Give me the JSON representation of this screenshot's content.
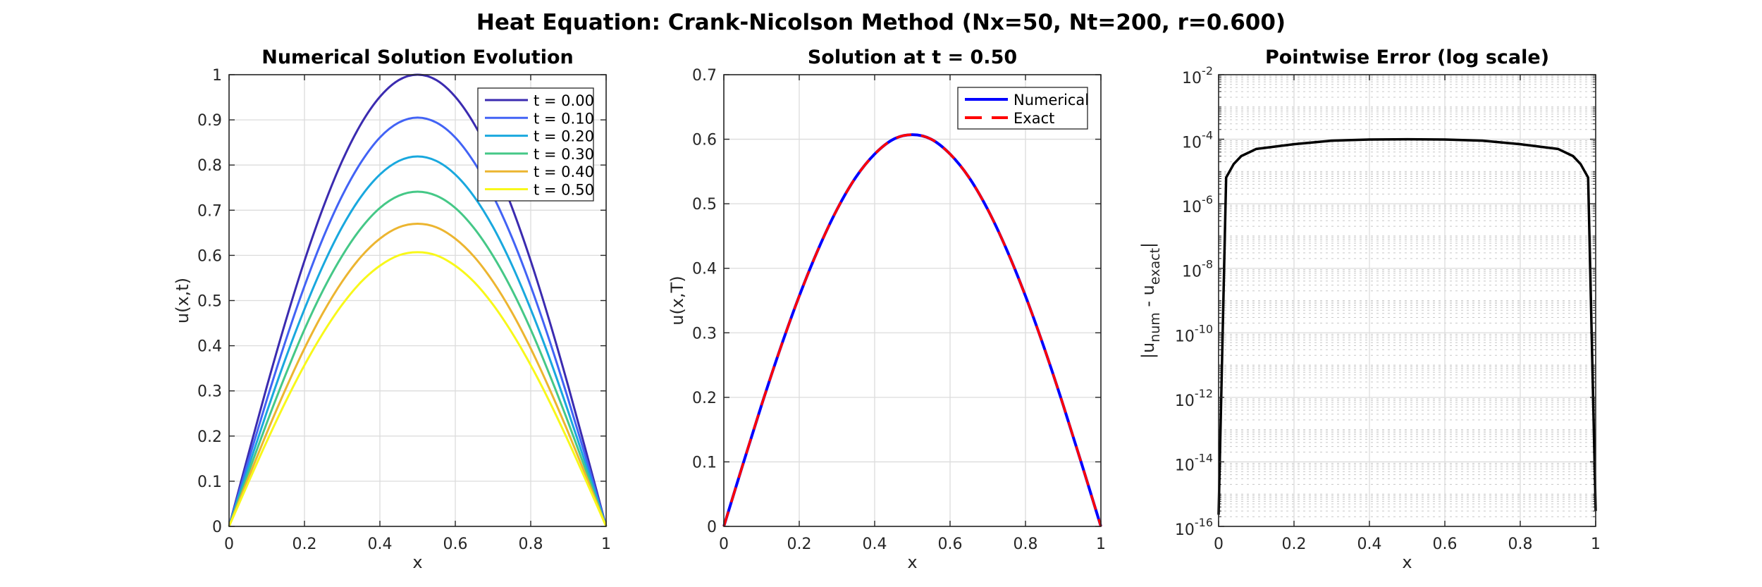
{
  "figure": {
    "suptitle": "Heat Equation: Crank-Nicolson Method (Nx=50, Nt=200, r=0.600)"
  },
  "chart_data": [
    {
      "type": "line",
      "title": "Numerical Solution Evolution",
      "xlabel": "x",
      "ylabel": "u(x,t)",
      "xlim": [
        0,
        1
      ],
      "ylim": [
        0,
        1
      ],
      "yscale": "linear",
      "grid": true,
      "legend": "top-right",
      "xticks": [
        0,
        0.2,
        0.4,
        0.6,
        0.8,
        1
      ],
      "xtick_labels": [
        "0",
        "0.2",
        "0.4",
        "0.6",
        "0.8",
        "1"
      ],
      "yticks": [
        0,
        0.1,
        0.2,
        0.3,
        0.4,
        0.5,
        0.6,
        0.7,
        0.8,
        0.9,
        1
      ],
      "ytick_labels": [
        "0",
        "0.1",
        "0.2",
        "0.3",
        "0.4",
        "0.5",
        "0.6",
        "0.7",
        "0.8",
        "0.9",
        "1"
      ],
      "x": [
        0,
        0.05,
        0.1,
        0.15,
        0.2,
        0.25,
        0.3,
        0.35,
        0.4,
        0.45,
        0.5,
        0.55,
        0.6,
        0.65,
        0.7,
        0.75,
        0.8,
        0.85,
        0.9,
        0.95,
        1
      ],
      "series": [
        {
          "name": "t = 0.00",
          "color": "#3b2bb0",
          "values": [
            0,
            0.156,
            0.309,
            0.454,
            0.588,
            0.707,
            0.809,
            0.891,
            0.951,
            0.988,
            1,
            0.988,
            0.951,
            0.891,
            0.809,
            0.707,
            0.588,
            0.454,
            0.309,
            0.156,
            0
          ]
        },
        {
          "name": "t = 0.10",
          "color": "#4263f5",
          "values": [
            0,
            0.142,
            0.28,
            0.411,
            0.532,
            0.64,
            0.732,
            0.806,
            0.861,
            0.894,
            0.905,
            0.894,
            0.861,
            0.806,
            0.732,
            0.64,
            0.532,
            0.411,
            0.28,
            0.142,
            0
          ]
        },
        {
          "name": "t = 0.20",
          "color": "#19a8de",
          "values": [
            0,
            0.128,
            0.253,
            0.372,
            0.481,
            0.579,
            0.663,
            0.73,
            0.779,
            0.809,
            0.819,
            0.809,
            0.779,
            0.73,
            0.663,
            0.579,
            0.481,
            0.372,
            0.253,
            0.128,
            0
          ]
        },
        {
          "name": "t = 0.30",
          "color": "#45c887",
          "values": [
            0,
            0.116,
            0.229,
            0.336,
            0.436,
            0.524,
            0.599,
            0.66,
            0.705,
            0.732,
            0.741,
            0.732,
            0.705,
            0.66,
            0.599,
            0.524,
            0.436,
            0.336,
            0.229,
            0.116,
            0
          ]
        },
        {
          "name": "t = 0.40",
          "color": "#ecb530",
          "values": [
            0,
            0.105,
            0.207,
            0.304,
            0.394,
            0.474,
            0.542,
            0.597,
            0.637,
            0.662,
            0.67,
            0.662,
            0.637,
            0.597,
            0.542,
            0.474,
            0.394,
            0.304,
            0.207,
            0.105,
            0
          ]
        },
        {
          "name": "t = 0.50",
          "color": "#f8f81a",
          "values": [
            0,
            0.095,
            0.188,
            0.276,
            0.357,
            0.429,
            0.491,
            0.541,
            0.577,
            0.6,
            0.607,
            0.6,
            0.577,
            0.541,
            0.491,
            0.429,
            0.357,
            0.276,
            0.188,
            0.095,
            0
          ]
        }
      ]
    },
    {
      "type": "line",
      "title": "Solution at t = 0.50",
      "xlabel": "x",
      "ylabel": "u(x,T)",
      "xlim": [
        0,
        1
      ],
      "ylim": [
        0,
        0.7
      ],
      "yscale": "linear",
      "grid": true,
      "legend": "top-right",
      "xticks": [
        0,
        0.2,
        0.4,
        0.6,
        0.8,
        1
      ],
      "xtick_labels": [
        "0",
        "0.2",
        "0.4",
        "0.6",
        "0.8",
        "1"
      ],
      "yticks": [
        0,
        0.1,
        0.2,
        0.3,
        0.4,
        0.5,
        0.6,
        0.7
      ],
      "ytick_labels": [
        "0",
        "0.1",
        "0.2",
        "0.3",
        "0.4",
        "0.5",
        "0.6",
        "0.7"
      ],
      "x": [
        0,
        0.05,
        0.1,
        0.15,
        0.2,
        0.25,
        0.3,
        0.35,
        0.4,
        0.45,
        0.5,
        0.55,
        0.6,
        0.65,
        0.7,
        0.75,
        0.8,
        0.85,
        0.9,
        0.95,
        1
      ],
      "series": [
        {
          "name": "Numerical",
          "color": "#0000ff",
          "style": "solid",
          "values": [
            0,
            0.095,
            0.188,
            0.276,
            0.357,
            0.429,
            0.491,
            0.541,
            0.577,
            0.6,
            0.607,
            0.6,
            0.577,
            0.541,
            0.491,
            0.429,
            0.357,
            0.276,
            0.188,
            0.095,
            0
          ]
        },
        {
          "name": "Exact",
          "color": "#ff0000",
          "style": "dashed",
          "values": [
            0,
            0.095,
            0.188,
            0.276,
            0.357,
            0.429,
            0.491,
            0.541,
            0.577,
            0.6,
            0.607,
            0.6,
            0.577,
            0.541,
            0.491,
            0.429,
            0.357,
            0.276,
            0.188,
            0.095,
            0
          ]
        }
      ]
    },
    {
      "type": "line",
      "title": "Pointwise Error (log scale)",
      "xlabel": "x",
      "ylabel_parts": [
        {
          "text": "|u",
          "sub": false
        },
        {
          "text": "num",
          "sub": true
        },
        {
          "text": " - u",
          "sub": false
        },
        {
          "text": "exact",
          "sub": true
        },
        {
          "text": "|",
          "sub": false
        }
      ],
      "xlim": [
        0,
        1
      ],
      "ylim": [
        1e-16,
        0.01
      ],
      "yscale": "log",
      "grid": true,
      "minor_grid": true,
      "xticks": [
        0,
        0.2,
        0.4,
        0.6,
        0.8,
        1
      ],
      "xtick_labels": [
        "0",
        "0.2",
        "0.4",
        "0.6",
        "0.8",
        "1"
      ],
      "yticks": [
        1e-16,
        1e-14,
        1e-12,
        1e-10,
        1e-08,
        1e-06,
        0.0001,
        0.01
      ],
      "ytick_labels": [
        {
          "base": "10",
          "exp": "-16"
        },
        {
          "base": "10",
          "exp": "-14"
        },
        {
          "base": "10",
          "exp": "-12"
        },
        {
          "base": "10",
          "exp": "-10"
        },
        {
          "base": "10",
          "exp": "-8"
        },
        {
          "base": "10",
          "exp": "-6"
        },
        {
          "base": "10",
          "exp": "-4"
        },
        {
          "base": "10",
          "exp": "-2"
        }
      ],
      "x": [
        0,
        0.02,
        0.04,
        0.06,
        0.1,
        0.2,
        0.3,
        0.4,
        0.5,
        0.6,
        0.7,
        0.8,
        0.9,
        0.94,
        0.96,
        0.98,
        1
      ],
      "series": [
        {
          "color": "#000000",
          "values": [
            2.3e-16,
            6.5e-06,
            1.7e-05,
            3e-05,
            5e-05,
            7e-05,
            9e-05,
            9.8e-05,
            0.0001,
            9.8e-05,
            9e-05,
            7e-05,
            5e-05,
            3e-05,
            1.7e-05,
            6.5e-06,
            3e-16
          ]
        }
      ]
    }
  ]
}
